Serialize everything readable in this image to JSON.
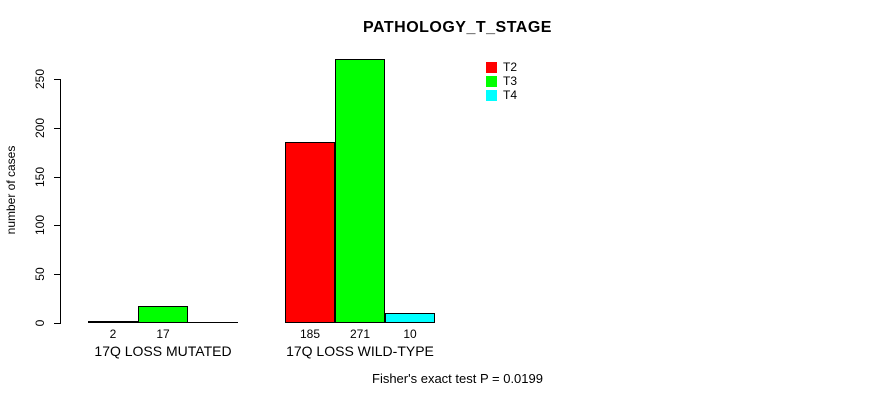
{
  "chart_data": {
    "type": "bar",
    "title": "PATHOLOGY_T_STAGE",
    "ylabel": "number of cases",
    "xlabel": "",
    "ylim": [
      0,
      250
    ],
    "yticks": [
      0,
      50,
      100,
      150,
      200,
      250
    ],
    "grid": false,
    "legend_position": "top-right",
    "categories": [
      "17Q LOSS MUTATED",
      "17Q LOSS WILD-TYPE"
    ],
    "series": [
      {
        "name": "T2",
        "color": "#ff0000",
        "values": [
          2,
          185
        ]
      },
      {
        "name": "T3",
        "color": "#00ff00",
        "values": [
          17,
          271
        ]
      },
      {
        "name": "T4",
        "color": "#00ffff",
        "values": [
          0,
          10
        ]
      }
    ],
    "bar_value_labels": [
      [
        "2",
        "17",
        ""
      ],
      [
        "185",
        "271",
        "10"
      ]
    ],
    "annotation": "Fisher's exact test P = 0.0199"
  }
}
